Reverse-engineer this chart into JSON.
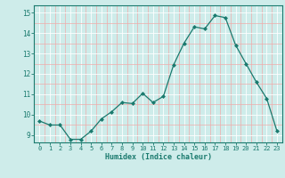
{
  "x": [
    0,
    1,
    2,
    3,
    4,
    5,
    6,
    7,
    8,
    9,
    10,
    11,
    12,
    13,
    14,
    15,
    16,
    17,
    18,
    19,
    20,
    21,
    22,
    23
  ],
  "y": [
    9.7,
    9.5,
    9.5,
    8.8,
    8.8,
    9.2,
    9.8,
    10.15,
    10.6,
    10.55,
    11.05,
    10.6,
    10.9,
    12.45,
    13.5,
    14.3,
    14.2,
    14.85,
    14.75,
    13.4,
    12.5,
    11.6,
    10.8,
    9.2
  ],
  "line_color": "#1a7a6e",
  "marker": "D",
  "marker_size": 2.0,
  "bg_color": "#ceecea",
  "grid_color_major": "#ffffff",
  "grid_color_minor": "#f0aaaa",
  "xlabel": "Humidex (Indice chaleur)",
  "ylabel_ticks": [
    9,
    10,
    11,
    12,
    13,
    14,
    15
  ],
  "xtick_labels": [
    "0",
    "1",
    "2",
    "3",
    "4",
    "5",
    "6",
    "7",
    "8",
    "9",
    "10",
    "11",
    "12",
    "13",
    "14",
    "15",
    "16",
    "17",
    "18",
    "19",
    "20",
    "21",
    "22",
    "23"
  ],
  "ylim": [
    8.65,
    15.35
  ],
  "xlim": [
    -0.5,
    23.5
  ]
}
